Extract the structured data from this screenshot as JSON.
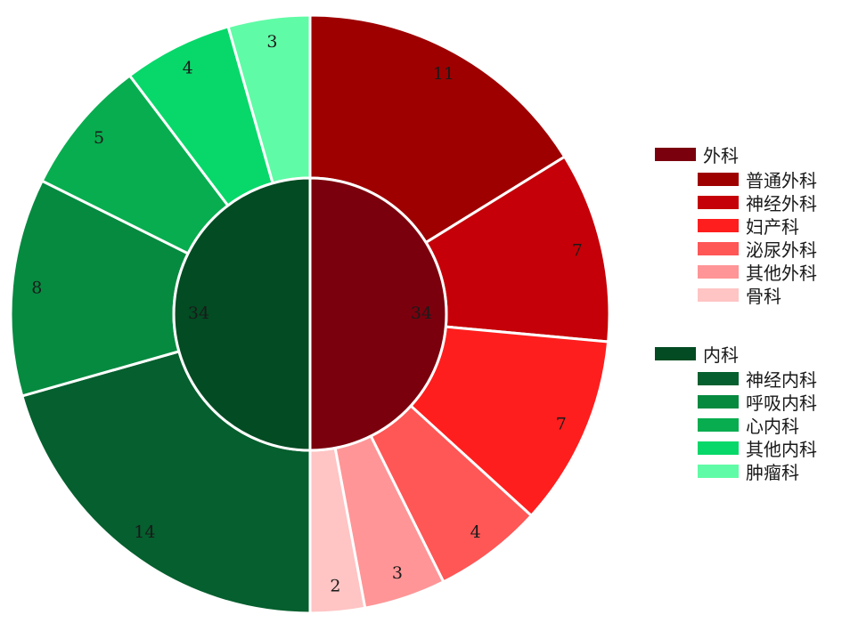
{
  "chart_data": {
    "type": "pie",
    "variant": "sunburst",
    "inner": [
      {
        "name": "外科",
        "value": 34,
        "color": "#7b000d"
      },
      {
        "name": "内科",
        "value": 34,
        "color": "#034b23"
      }
    ],
    "outer": [
      {
        "parent": "外科",
        "name": "普通外科",
        "value": 11,
        "color": "#9e0000"
      },
      {
        "parent": "外科",
        "name": "神经外科",
        "value": 7,
        "color": "#c50008"
      },
      {
        "parent": "外科",
        "name": "妇产科",
        "value": 7,
        "color": "#ff1e1e"
      },
      {
        "parent": "外科",
        "name": "泌尿外科",
        "value": 4,
        "color": "#ff5656"
      },
      {
        "parent": "外科",
        "name": "其他外科",
        "value": 3,
        "color": "#ff9597"
      },
      {
        "parent": "外科",
        "name": "骨科",
        "value": 2,
        "color": "#ffc4c4"
      },
      {
        "parent": "内科",
        "name": "神经内科",
        "value": 14,
        "color": "#055f2e"
      },
      {
        "parent": "内科",
        "name": "呼吸内科",
        "value": 8,
        "color": "#068a40"
      },
      {
        "parent": "内科",
        "name": "心内科",
        "value": 5,
        "color": "#08ad4f"
      },
      {
        "parent": "内科",
        "name": "其他内科",
        "value": 4,
        "color": "#08d86a"
      },
      {
        "parent": "内科",
        "name": "肿瘤科",
        "value": 3,
        "color": "#60fba6"
      }
    ],
    "legend_position": "right"
  },
  "legend": [
    {
      "name": "外科",
      "color": "#7b000d",
      "items": [
        {
          "name": "普通外科",
          "color": "#9e0000"
        },
        {
          "name": "神经外科",
          "color": "#c50008"
        },
        {
          "name": "妇产科",
          "color": "#ff1e1e"
        },
        {
          "name": "泌尿外科",
          "color": "#ff5656"
        },
        {
          "name": "其他外科",
          "color": "#ff9597"
        },
        {
          "name": "骨科",
          "color": "#ffc4c4"
        }
      ]
    },
    {
      "name": "内科",
      "color": "#034b23",
      "items": [
        {
          "name": "神经内科",
          "color": "#055f2e"
        },
        {
          "name": "呼吸内科",
          "color": "#068a40"
        },
        {
          "name": "心内科",
          "color": "#08ad4f"
        },
        {
          "name": "其他内科",
          "color": "#08d86a"
        },
        {
          "name": "肿瘤科",
          "color": "#60fba6"
        }
      ]
    }
  ]
}
